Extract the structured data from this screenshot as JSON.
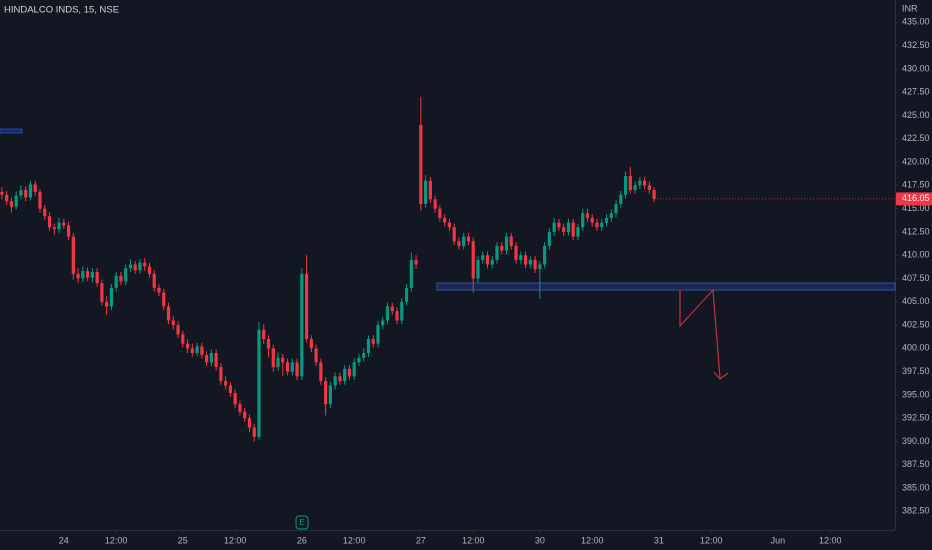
{
  "title": "HINDALCO INDS, 15, NSE",
  "currency": "INR",
  "earnings_marker": "E",
  "chart_data": {
    "type": "candlestick",
    "up_color": "#089981",
    "down_color": "#f23645",
    "xlim": [
      -13.4,
      174.6
    ],
    "ylim": [
      380.5,
      437.4
    ],
    "xticks": [
      {
        "value": 0,
        "label": "24"
      },
      {
        "value": 11,
        "label": "12:00"
      },
      {
        "value": 25,
        "label": "25"
      },
      {
        "value": 36,
        "label": "12:00"
      },
      {
        "value": 50,
        "label": "26"
      },
      {
        "value": 61,
        "label": "12:00"
      },
      {
        "value": 75,
        "label": "27"
      },
      {
        "value": 86,
        "label": "12:00"
      },
      {
        "value": 100,
        "label": "30"
      },
      {
        "value": 111,
        "label": "12:00"
      },
      {
        "value": 125,
        "label": "31"
      },
      {
        "value": 136,
        "label": "12:00"
      },
      {
        "value": 150,
        "label": "Jun"
      },
      {
        "value": 161,
        "label": "12:00"
      }
    ],
    "yticks": [
      {
        "value": 382.5,
        "label": "382.50"
      },
      {
        "value": 385,
        "label": "385.00"
      },
      {
        "value": 387.5,
        "label": "387.50"
      },
      {
        "value": 390,
        "label": "390.00"
      },
      {
        "value": 392.5,
        "label": "392.50"
      },
      {
        "value": 395,
        "label": "395.00"
      },
      {
        "value": 397.5,
        "label": "397.50"
      },
      {
        "value": 400,
        "label": "400.00"
      },
      {
        "value": 402.5,
        "label": "402.50"
      },
      {
        "value": 405,
        "label": "405.00"
      },
      {
        "value": 407.5,
        "label": "407.50"
      },
      {
        "value": 410,
        "label": "410.00"
      },
      {
        "value": 412.5,
        "label": "412.50"
      },
      {
        "value": 415,
        "label": "415.00"
      },
      {
        "value": 417.5,
        "label": "417.50"
      },
      {
        "value": 420,
        "label": "420.00"
      },
      {
        "value": 422.5,
        "label": "422.50"
      },
      {
        "value": 425,
        "label": "425.00"
      },
      {
        "value": 427.5,
        "label": "427.50"
      },
      {
        "value": 430,
        "label": "430.00"
      },
      {
        "value": 432.5,
        "label": "432.50"
      },
      {
        "value": 435,
        "label": "435.00"
      }
    ],
    "last_price": 416.05,
    "x": [
      -13,
      -12,
      -11,
      -10,
      -9,
      -8,
      -7,
      -6,
      -5,
      -4,
      -3,
      -2,
      -1,
      0,
      1,
      2,
      3,
      4,
      5,
      6,
      7,
      8,
      9,
      10,
      11,
      12,
      13,
      14,
      15,
      16,
      17,
      18,
      19,
      20,
      21,
      22,
      23,
      24,
      25,
      26,
      27,
      28,
      29,
      30,
      31,
      32,
      33,
      34,
      35,
      36,
      37,
      38,
      39,
      40,
      41,
      42,
      43,
      44,
      45,
      46,
      47,
      48,
      49,
      50,
      51,
      52,
      53,
      54,
      55,
      56,
      57,
      58,
      59,
      60,
      61,
      62,
      63,
      64,
      65,
      66,
      67,
      68,
      69,
      70,
      71,
      72,
      73,
      74,
      75,
      76,
      77,
      78,
      79,
      80,
      81,
      82,
      83,
      84,
      85,
      86,
      87,
      88,
      89,
      90,
      91,
      92,
      93,
      94,
      95,
      96,
      97,
      98,
      99,
      100,
      101,
      102,
      103,
      104,
      105,
      106,
      107,
      108,
      109,
      110,
      111,
      112,
      113,
      114,
      115,
      116,
      117,
      118,
      119,
      120,
      121,
      122,
      123,
      124
    ],
    "open": [
      416.8,
      416.5,
      415.8,
      415.2,
      416.4,
      417.0,
      416.2,
      417.6,
      416.8,
      415.0,
      414.2,
      413.0,
      412.8,
      413.5,
      413.2,
      412.0,
      408.0,
      407.5,
      408.3,
      407.6,
      408.2,
      407.0,
      405.0,
      404.5,
      406.5,
      407.8,
      407.2,
      408.6,
      409.0,
      408.4,
      409.2,
      408.8,
      408.0,
      406.5,
      406.0,
      404.5,
      403.0,
      402.5,
      401.5,
      400.5,
      400.0,
      399.5,
      400.2,
      399.3,
      398.5,
      399.5,
      398.0,
      396.5,
      396.0,
      395.2,
      394.0,
      393.2,
      392.5,
      391.5,
      390.5,
      402.0,
      401.0,
      400.0,
      398.0,
      399.0,
      398.5,
      397.5,
      398.5,
      397.0,
      408.0,
      401.0,
      400.0,
      398.5,
      396.5,
      394.0,
      396.0,
      397.0,
      396.5,
      397.8,
      397.0,
      398.5,
      399.0,
      399.5,
      401.0,
      400.5,
      402.5,
      403.0,
      404.5,
      404.0,
      403.0,
      405.0,
      406.5,
      409.5,
      424.0,
      415.5,
      418.0,
      416.0,
      415.0,
      414.0,
      413.5,
      413.0,
      411.5,
      411.0,
      412.0,
      411.5,
      407.5,
      409.5,
      410.0,
      409.0,
      409.5,
      411.0,
      410.5,
      412.0,
      411.0,
      409.5,
      410.0,
      409.0,
      409.5,
      408.5,
      409.0,
      411.0,
      412.5,
      413.5,
      413.0,
      412.5,
      413.5,
      412.0,
      413.0,
      414.5,
      414.0,
      413.5,
      413.0,
      413.5,
      414.0,
      414.5,
      415.5,
      416.5,
      418.5,
      417.0,
      417.5,
      418.0,
      417.5,
      417.0
    ],
    "high": [
      417.3,
      416.9,
      416.2,
      416.9,
      417.5,
      417.4,
      418.0,
      418.0,
      417.1,
      415.4,
      414.6,
      413.4,
      414.0,
      413.9,
      413.6,
      412.4,
      408.6,
      408.8,
      408.7,
      408.6,
      408.6,
      407.4,
      405.6,
      406.9,
      408.2,
      408.2,
      409.0,
      409.6,
      409.4,
      409.6,
      409.7,
      409.2,
      408.4,
      406.9,
      406.4,
      404.9,
      403.5,
      402.9,
      401.9,
      401.0,
      400.5,
      400.6,
      400.6,
      399.7,
      399.9,
      399.9,
      398.4,
      397.0,
      396.4,
      395.6,
      394.4,
      393.6,
      392.9,
      391.9,
      402.8,
      402.6,
      401.4,
      400.4,
      399.6,
      399.4,
      398.9,
      398.9,
      398.9,
      408.6,
      410.0,
      401.4,
      400.4,
      398.9,
      396.9,
      396.4,
      397.4,
      397.4,
      398.2,
      398.2,
      398.9,
      399.4,
      400.0,
      401.4,
      401.4,
      402.9,
      403.4,
      404.9,
      404.9,
      404.4,
      405.4,
      406.9,
      410.3,
      410.0,
      427.0,
      418.6,
      418.4,
      416.4,
      415.4,
      414.4,
      413.9,
      413.4,
      411.9,
      412.4,
      412.4,
      411.9,
      409.9,
      410.4,
      410.4,
      409.9,
      411.4,
      411.4,
      412.4,
      412.4,
      411.4,
      410.4,
      410.4,
      409.9,
      409.9,
      409.4,
      411.4,
      412.9,
      414.0,
      413.9,
      413.4,
      413.9,
      413.9,
      413.4,
      415.0,
      415.0,
      414.4,
      413.9,
      413.9,
      414.4,
      414.9,
      415.9,
      416.9,
      419.0,
      419.5,
      417.9,
      418.4,
      418.4,
      417.9,
      417.3
    ],
    "low": [
      416.0,
      415.4,
      414.6,
      414.9,
      416.0,
      415.8,
      415.9,
      416.4,
      414.6,
      413.8,
      412.6,
      412.2,
      412.4,
      412.8,
      411.6,
      407.4,
      407.0,
      407.1,
      407.2,
      407.1,
      406.6,
      404.6,
      403.6,
      404.1,
      406.1,
      406.8,
      406.8,
      408.2,
      408.0,
      408.0,
      408.3,
      407.6,
      406.1,
      405.6,
      404.1,
      402.6,
      402.0,
      401.1,
      400.1,
      399.5,
      399.1,
      399.1,
      398.9,
      398.1,
      398.1,
      397.6,
      396.1,
      395.6,
      394.8,
      393.6,
      392.8,
      392.1,
      391.0,
      390.0,
      390.2,
      400.5,
      399.0,
      397.5,
      397.6,
      397.0,
      397.1,
      397.1,
      396.6,
      396.6,
      400.6,
      399.6,
      398.1,
      396.1,
      392.8,
      393.6,
      395.6,
      396.1,
      396.1,
      396.6,
      396.6,
      398.1,
      398.6,
      399.1,
      400.1,
      400.1,
      402.1,
      402.6,
      403.6,
      402.6,
      402.6,
      404.6,
      406.1,
      408.5,
      414.8,
      415.1,
      415.6,
      414.6,
      413.6,
      413.1,
      412.6,
      411.1,
      410.6,
      410.6,
      411.1,
      406.0,
      407.1,
      409.1,
      408.6,
      408.6,
      409.1,
      410.1,
      410.1,
      410.6,
      409.1,
      409.1,
      408.6,
      408.6,
      408.1,
      405.3,
      408.6,
      410.6,
      412.1,
      412.6,
      412.1,
      412.1,
      411.6,
      411.6,
      412.6,
      413.6,
      413.1,
      412.6,
      412.6,
      413.1,
      413.6,
      414.1,
      415.1,
      416.1,
      416.6,
      416.6,
      417.1,
      417.1,
      416.6,
      415.7
    ],
    "close": [
      416.5,
      415.8,
      415.2,
      416.4,
      417.0,
      416.2,
      417.6,
      416.8,
      415.0,
      414.2,
      413.0,
      412.8,
      413.5,
      413.2,
      412.0,
      408.0,
      407.5,
      408.3,
      407.6,
      408.2,
      407.0,
      405.0,
      404.5,
      406.5,
      407.8,
      407.2,
      408.6,
      409.0,
      408.4,
      409.2,
      408.8,
      408.0,
      406.5,
      406.0,
      404.5,
      403.0,
      402.5,
      401.5,
      400.5,
      400.0,
      399.5,
      400.2,
      399.3,
      398.5,
      399.5,
      398.0,
      396.5,
      396.0,
      395.2,
      394.0,
      393.2,
      392.5,
      391.5,
      390.5,
      402.0,
      401.0,
      400.0,
      398.0,
      399.0,
      398.5,
      397.5,
      398.5,
      397.0,
      408.0,
      401.0,
      400.0,
      398.5,
      396.5,
      394.0,
      396.0,
      397.0,
      396.5,
      397.8,
      397.0,
      398.5,
      399.0,
      399.5,
      401.0,
      400.5,
      402.5,
      403.0,
      404.5,
      404.0,
      403.0,
      405.0,
      406.5,
      409.5,
      409.0,
      415.5,
      418.0,
      416.0,
      415.0,
      414.0,
      413.5,
      413.0,
      411.5,
      411.0,
      412.0,
      411.5,
      407.5,
      409.5,
      410.0,
      409.0,
      409.5,
      411.0,
      410.5,
      412.0,
      411.0,
      409.5,
      410.0,
      409.0,
      409.5,
      408.5,
      409.0,
      411.0,
      412.5,
      413.5,
      413.0,
      412.5,
      413.5,
      412.0,
      413.0,
      414.5,
      414.0,
      413.5,
      413.0,
      413.5,
      414.0,
      414.5,
      415.5,
      416.5,
      418.5,
      417.0,
      417.5,
      418.0,
      417.5,
      417.0,
      416.05
    ]
  }
}
